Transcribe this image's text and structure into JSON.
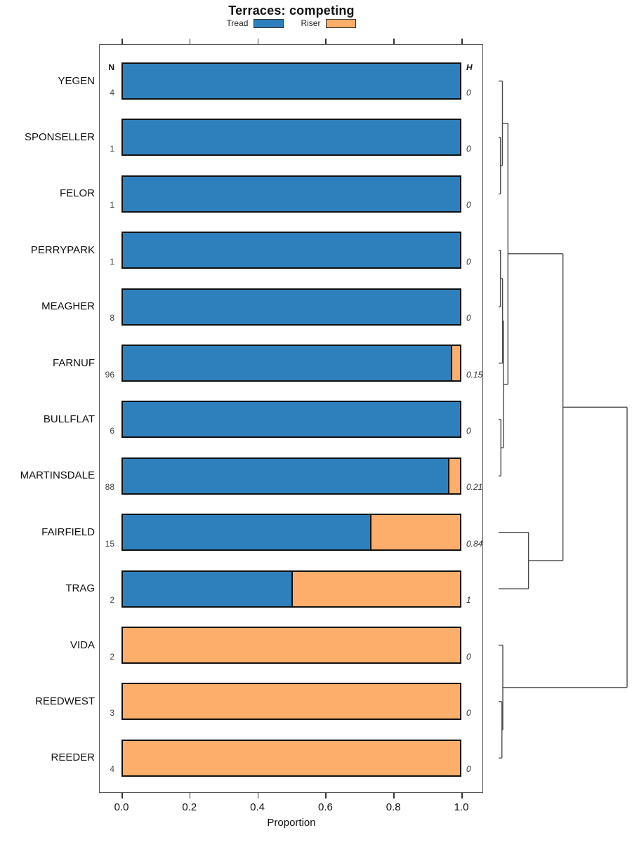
{
  "title": "Terraces: competing",
  "xlabel": "Proportion",
  "columns": {
    "n_header": "N",
    "h_header": "H"
  },
  "legend": [
    {
      "label": "Tread",
      "color": "#2E80BC"
    },
    {
      "label": "Riser",
      "color": "#FCAE6A"
    }
  ],
  "colors": {
    "tread": "#2E80BC",
    "riser": "#FCAE6A",
    "bar_border": "#111111",
    "dendrogram_line": "#4a4a4a"
  },
  "chart_data": {
    "type": "bar",
    "stacked": true,
    "orientation": "horizontal",
    "title": "Terraces: competing",
    "xlabel": "Proportion",
    "xlim": [
      0,
      1
    ],
    "x_ticks": [
      "0.0",
      "0.2",
      "0.4",
      "0.6",
      "0.8",
      "1.0"
    ],
    "series_names": [
      "Tread",
      "Riser"
    ],
    "rows": [
      {
        "label": "YEGEN",
        "n": "4",
        "tread": 1.0,
        "riser": 0.0,
        "h": "0"
      },
      {
        "label": "SPONSELLER",
        "n": "1",
        "tread": 1.0,
        "riser": 0.0,
        "h": "0"
      },
      {
        "label": "FELOR",
        "n": "1",
        "tread": 1.0,
        "riser": 0.0,
        "h": "0"
      },
      {
        "label": "PERRYPARK",
        "n": "1",
        "tread": 1.0,
        "riser": 0.0,
        "h": "0"
      },
      {
        "label": "MEAGHER",
        "n": "8",
        "tread": 1.0,
        "riser": 0.0,
        "h": "0"
      },
      {
        "label": "FARNUF",
        "n": "96",
        "tread": 0.973,
        "riser": 0.027,
        "h": "0.15"
      },
      {
        "label": "BULLFLAT",
        "n": "6",
        "tread": 1.0,
        "riser": 0.0,
        "h": "0"
      },
      {
        "label": "MARTINSDALE",
        "n": "88",
        "tread": 0.965,
        "riser": 0.035,
        "h": "0.21"
      },
      {
        "label": "FAIRFIELD",
        "n": "15",
        "tread": 0.733,
        "riser": 0.267,
        "h": "0.84"
      },
      {
        "label": "TRAG",
        "n": "2",
        "tread": 0.5,
        "riser": 0.5,
        "h": "1"
      },
      {
        "label": "VIDA",
        "n": "2",
        "tread": 0.0,
        "riser": 1.0,
        "h": "0"
      },
      {
        "label": "REEDWEST",
        "n": "3",
        "tread": 0.0,
        "riser": 1.0,
        "h": "0"
      },
      {
        "label": "REEDER",
        "n": "4",
        "tread": 0.0,
        "riser": 1.0,
        "h": "0"
      }
    ],
    "dendrogram": {
      "position": "right",
      "merges": [
        {
          "id": "m1",
          "children": [
            "SPONSELLER",
            "FELOR"
          ],
          "height": 0.015
        },
        {
          "id": "m2",
          "children": [
            "YEGEN",
            "m1"
          ],
          "height": 0.03
        },
        {
          "id": "m3",
          "children": [
            "PERRYPARK",
            "MEAGHER"
          ],
          "height": 0.015
        },
        {
          "id": "m4",
          "children": [
            "m3",
            "FARNUF"
          ],
          "height": 0.031
        },
        {
          "id": "m5",
          "children": [
            "BULLFLAT",
            "MARTINSDALE"
          ],
          "height": 0.018
        },
        {
          "id": "m6",
          "children": [
            "m4",
            "m5"
          ],
          "height": 0.038
        },
        {
          "id": "m7",
          "children": [
            "m2",
            "m6"
          ],
          "height": 0.073
        },
        {
          "id": "m8",
          "children": [
            "FAIRFIELD",
            "TRAG"
          ],
          "height": 0.233
        },
        {
          "id": "m9",
          "children": [
            "m7",
            "m8"
          ],
          "height": 0.501
        },
        {
          "id": "m10",
          "children": [
            "REEDWEST",
            "REEDER"
          ],
          "height": 0.026
        },
        {
          "id": "m11",
          "children": [
            "VIDA",
            "m10"
          ],
          "height": 0.033
        },
        {
          "id": "m12",
          "children": [
            "m9",
            "m11"
          ],
          "height": 1.0
        }
      ]
    }
  }
}
